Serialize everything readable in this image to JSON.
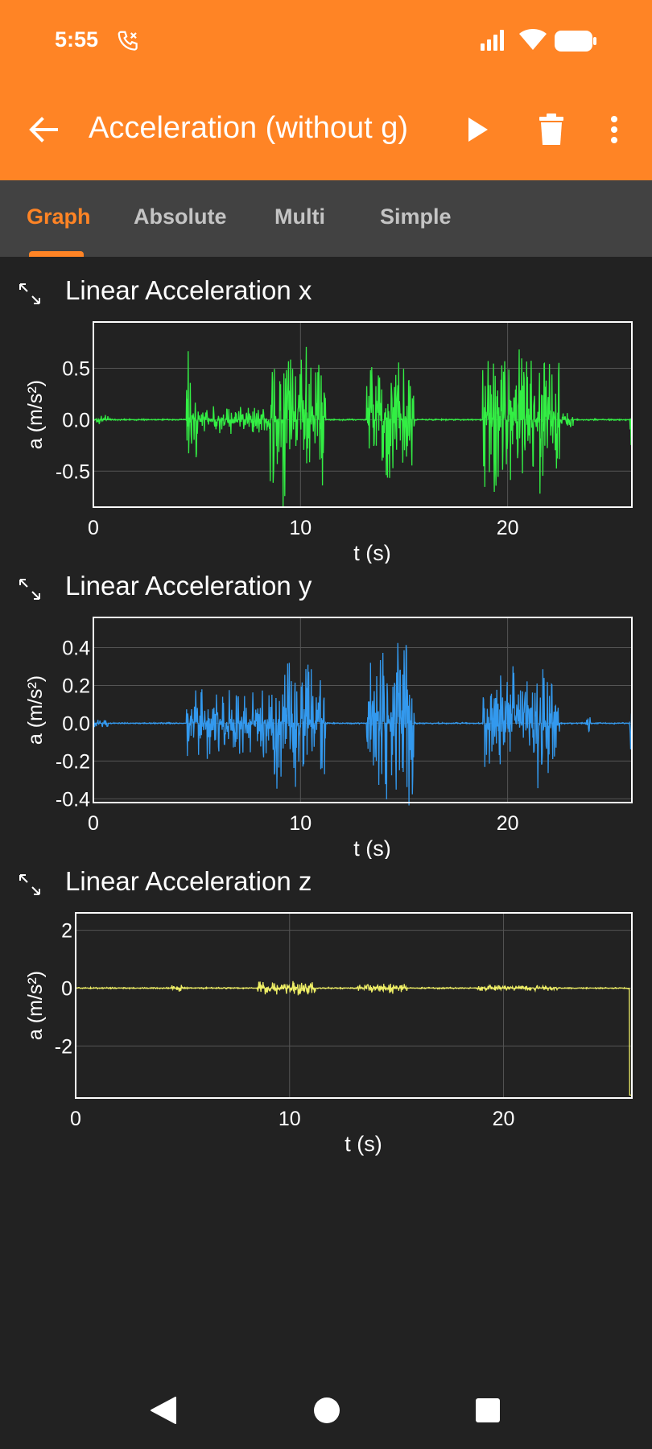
{
  "status": {
    "time": "5:55"
  },
  "toolbar": {
    "title": "Acceleration (without g)"
  },
  "tabs": [
    "Graph",
    "Absolute",
    "Multi",
    "Simple"
  ],
  "colors": {
    "accent": "#FF8425",
    "x_series": "#33EE44",
    "y_series": "#3399EE",
    "z_series": "#EEEE66"
  },
  "graphs": [
    {
      "title": "Linear Acceleration x"
    },
    {
      "title": "Linear Acceleration y"
    },
    {
      "title": "Linear Acceleration z"
    }
  ],
  "chart_data": [
    {
      "type": "line",
      "title": "Linear Acceleration x",
      "xlabel": "t (s)",
      "ylabel": "a (m/s²)",
      "xlim": [
        0,
        26
      ],
      "ylim": [
        -0.85,
        0.95
      ],
      "xticks": [
        "0",
        "10",
        "20"
      ],
      "yticks": [
        "0.5",
        "0.0",
        "-0.5"
      ],
      "grid": true,
      "series": [
        {
          "color": "#33EE44",
          "bursts": [
            [
              0.0,
              0.8,
              0.05
            ],
            [
              4.5,
              5.0,
              0.75
            ],
            [
              5.0,
              8.5,
              0.15
            ],
            [
              8.5,
              11.2,
              0.85
            ],
            [
              13.2,
              15.5,
              0.6
            ],
            [
              18.8,
              22.5,
              0.8
            ],
            [
              22.5,
              23.2,
              0.1
            ],
            [
              25.9,
              26.0,
              0.6
            ]
          ]
        }
      ]
    },
    {
      "type": "line",
      "title": "Linear Acceleration y",
      "xlabel": "t (s)",
      "ylabel": "a (m/s²)",
      "xlim": [
        0,
        26
      ],
      "ylim": [
        -0.42,
        0.56
      ],
      "xticks": [
        "0",
        "10",
        "20"
      ],
      "yticks": [
        "0.4",
        "0.2",
        "0.0",
        "-0.2",
        "-0.4"
      ],
      "grid": true,
      "series": [
        {
          "color": "#3399EE",
          "bursts": [
            [
              0.0,
              0.8,
              0.03
            ],
            [
              4.5,
              8.5,
              0.2
            ],
            [
              8.5,
              11.2,
              0.35
            ],
            [
              13.2,
              15.5,
              0.5
            ],
            [
              18.8,
              22.5,
              0.35
            ],
            [
              23.8,
              24.0,
              0.05
            ],
            [
              25.9,
              26.0,
              0.2
            ]
          ]
        }
      ]
    },
    {
      "type": "line",
      "title": "Linear Acceleration z",
      "xlabel": "t (s)",
      "ylabel": "a (m/s²)",
      "xlim": [
        0,
        26
      ],
      "ylim": [
        -3.8,
        2.6
      ],
      "xticks": [
        "0",
        "10",
        "20"
      ],
      "yticks": [
        "2",
        "0",
        "-2"
      ],
      "grid": true,
      "series": [
        {
          "color": "#EEEE66",
          "bursts": [
            [
              4.5,
              5.0,
              0.15
            ],
            [
              8.5,
              11.2,
              0.25
            ],
            [
              13.2,
              15.5,
              0.2
            ],
            [
              18.8,
              22.5,
              0.1
            ],
            [
              25.9,
              26.0,
              -3.7
            ]
          ]
        }
      ]
    }
  ]
}
